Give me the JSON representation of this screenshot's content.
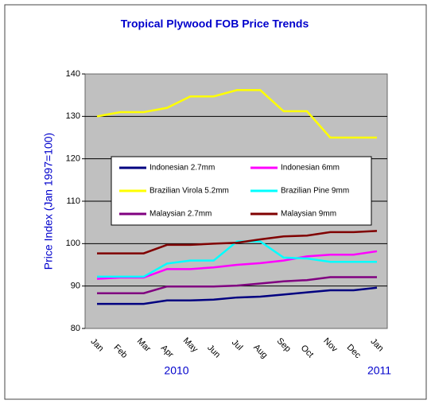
{
  "chart_data": {
    "type": "line",
    "title": "Tropical Plywood FOB Price Trends",
    "y_label": "Price Index (Jan 1997=100)",
    "categories": [
      "Jan",
      "Feb",
      "Mar",
      "Apr",
      "May",
      "Jun",
      "Jul",
      "Aug",
      "Sep",
      "Oct",
      "Nov",
      "Dec",
      "Jan"
    ],
    "year_labels": [
      "2010",
      "2011"
    ],
    "ylim": [
      80,
      140
    ],
    "yticks": [
      80,
      90,
      100,
      110,
      120,
      130,
      140
    ],
    "grid": true,
    "series": [
      {
        "name": "Indonesian 2.7mm",
        "color": "#000080",
        "values": [
          85.8,
          85.8,
          85.8,
          86.6,
          86.6,
          86.8,
          87.3,
          87.5,
          88,
          88.5,
          89,
          89,
          89.6
        ]
      },
      {
        "name": "Indonesian 6mm",
        "color": "#ff00ff",
        "values": [
          91.7,
          92,
          92,
          94,
          94,
          94.4,
          95,
          95.4,
          96,
          97,
          97.4,
          97.4,
          98.2
        ]
      },
      {
        "name": "Brazilian Virola 5.2mm",
        "color": "#ffff00",
        "values": [
          130,
          131,
          131,
          132,
          134.7,
          134.7,
          136.2,
          136.2,
          131.2,
          131.2,
          125,
          125,
          125
        ]
      },
      {
        "name": "Brazilian Pine 9mm",
        "color": "#00ffff",
        "values": [
          92.2,
          92.2,
          92.2,
          95.3,
          96,
          96,
          100.5,
          100.5,
          96.7,
          96.5,
          95.7,
          95.7,
          95.7
        ]
      },
      {
        "name": "Malaysian 2.7mm",
        "color": "#800080",
        "values": [
          88.3,
          88.3,
          88.3,
          89.9,
          89.9,
          89.9,
          90.1,
          90.6,
          91.1,
          91.4,
          92.1,
          92.1,
          92.1
        ]
      },
      {
        "name": "Malaysian 9mm",
        "color": "#800000",
        "values": [
          97.7,
          97.7,
          97.7,
          99.7,
          99.7,
          100,
          100.2,
          101,
          101.7,
          101.9,
          102.7,
          102.7,
          103
        ]
      }
    ]
  }
}
